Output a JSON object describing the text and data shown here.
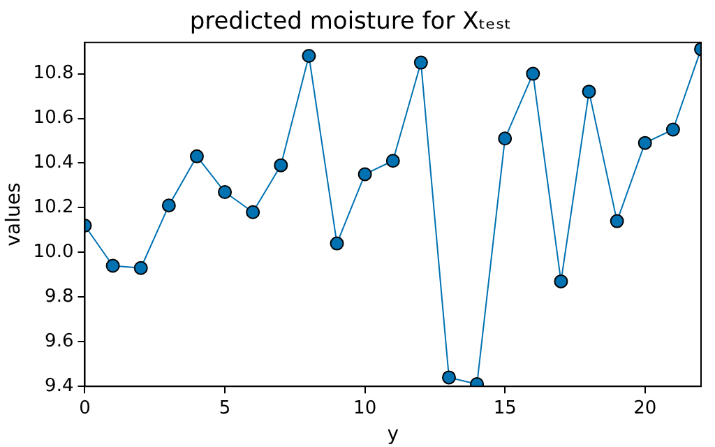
{
  "chart_data": {
    "type": "line",
    "title": "predicted moisture for Xₜₑₛₜ",
    "xlabel": "y",
    "ylabel": "values",
    "x": [
      0,
      1,
      2,
      3,
      4,
      5,
      6,
      7,
      8,
      9,
      10,
      11,
      12,
      13,
      14,
      15,
      16,
      17,
      18,
      19,
      20,
      21,
      22
    ],
    "series": [
      {
        "color": "#0072b2",
        "values": [
          10.12,
          9.94,
          9.93,
          10.21,
          10.43,
          10.27,
          10.18,
          10.39,
          10.88,
          10.04,
          10.35,
          10.41,
          10.85,
          9.44,
          9.41,
          10.51,
          10.8,
          9.87,
          10.72,
          10.14,
          10.49,
          10.55,
          10.91
        ]
      }
    ],
    "xlim": [
      0,
      22
    ],
    "xticks": [
      0,
      5,
      10,
      15,
      20
    ],
    "ylim": [
      9.4,
      10.94
    ],
    "yticks": [
      9.4,
      9.6,
      9.8,
      {
        "value": 10,
        "label": "10.0"
      },
      10.2,
      10.4,
      10.6,
      10.8
    ],
    "marker": "circle",
    "line_style": "solid",
    "grid": false,
    "legend": false
  }
}
